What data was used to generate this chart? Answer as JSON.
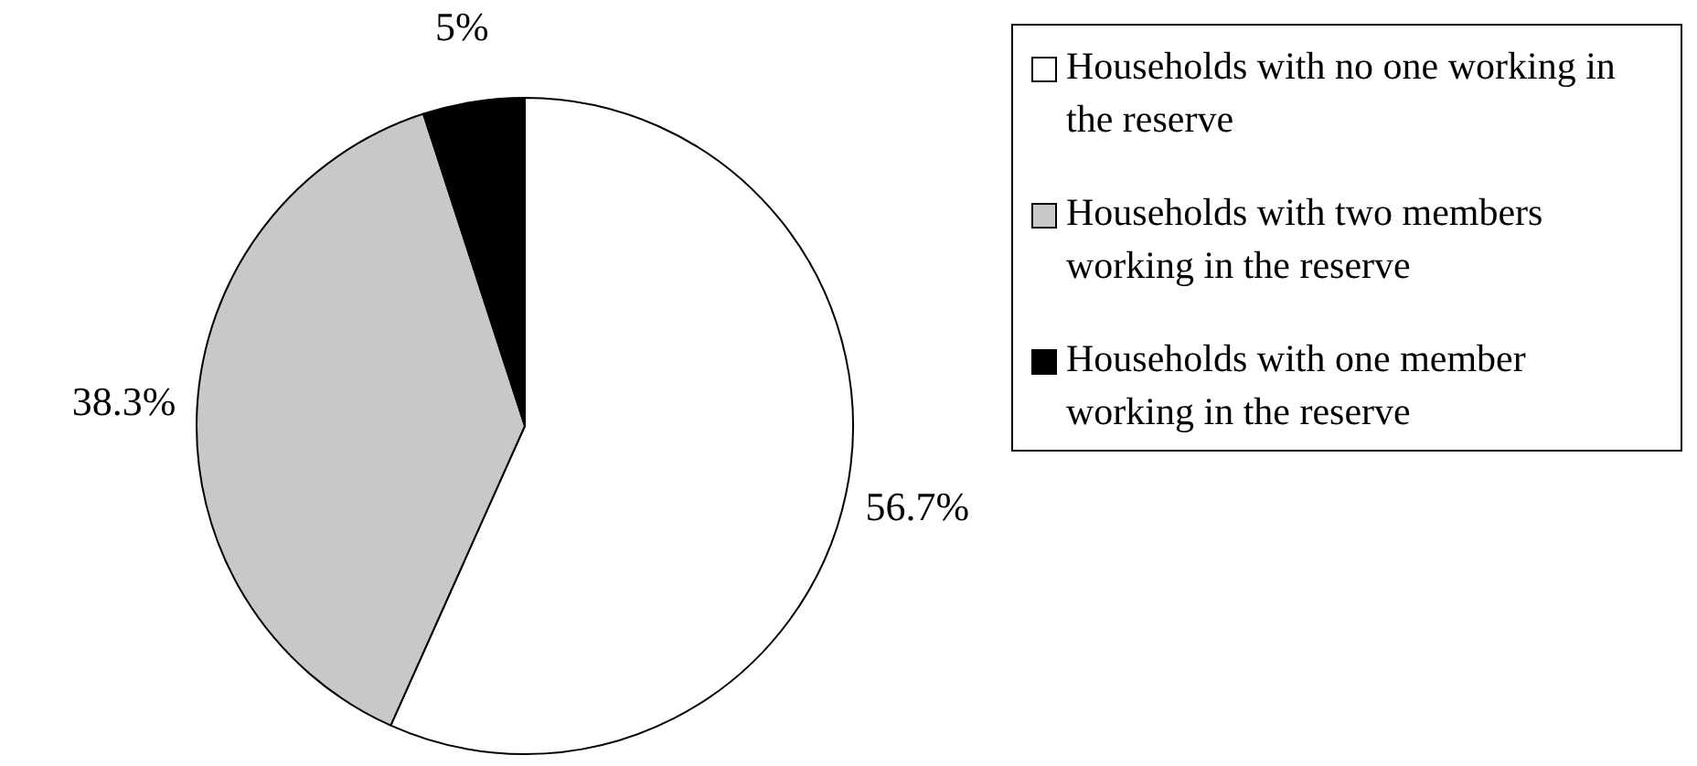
{
  "chart_data": {
    "type": "pie",
    "categories": [
      "Households with no one working in the reserve",
      "Households with two members working in the reserve",
      "Households with one member working in the reserve"
    ],
    "values": [
      56.7,
      38.3,
      5
    ],
    "colors": [
      "#ffffff",
      "#c8c8c8",
      "#000000"
    ],
    "value_labels": [
      "56.7%",
      "38.3%",
      "5%"
    ],
    "legend": "right"
  }
}
